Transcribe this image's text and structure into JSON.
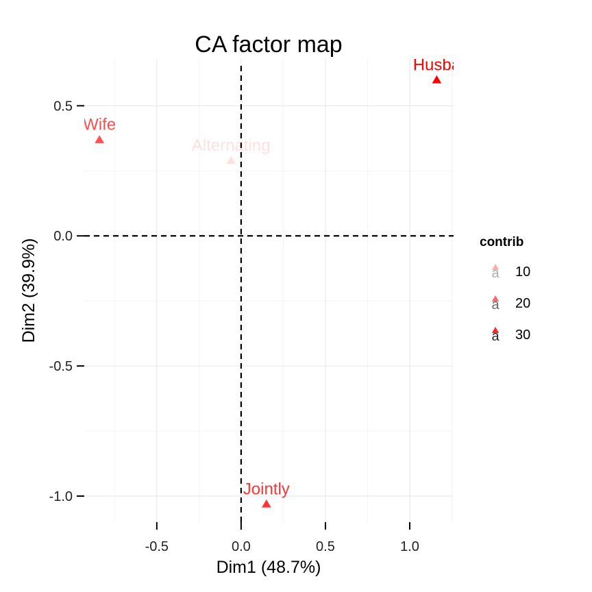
{
  "chart_data": {
    "type": "scatter",
    "title": "CA factor map",
    "xlabel": "Dim1 (48.7%)",
    "ylabel": "Dim2 (39.9%)",
    "xlim": [
      -0.93,
      1.26
    ],
    "ylim": [
      -1.1,
      0.68
    ],
    "x_ticks": [
      -0.5,
      0.0,
      0.5,
      1.0
    ],
    "x_tick_labels": [
      "-0.5",
      "0.0",
      "0.5",
      "1.0"
    ],
    "y_ticks": [
      0.5,
      0.0,
      -0.5,
      -1.0
    ],
    "y_tick_labels": [
      "0.5",
      "0.0",
      "-0.5",
      "-1.0"
    ],
    "grid": true,
    "reference_lines": {
      "x": 0,
      "y": 0,
      "style": "dashed"
    },
    "color": "#ff0000",
    "points": [
      {
        "label": "Husba",
        "x": 1.16,
        "y": 0.6,
        "contrib": 36
      },
      {
        "label": "Wife",
        "x": -0.84,
        "y": 0.37,
        "contrib": 24
      },
      {
        "label": "Alternating",
        "x": -0.06,
        "y": 0.29,
        "contrib": 2
      },
      {
        "label": "Jointly",
        "x": 0.15,
        "y": -1.03,
        "contrib": 28
      }
    ],
    "legend": {
      "title": "contrib",
      "position": "right",
      "glyph": "a",
      "items": [
        {
          "label": "10",
          "value": 10
        },
        {
          "label": "20",
          "value": 20
        },
        {
          "label": "30",
          "value": 30
        }
      ]
    }
  }
}
